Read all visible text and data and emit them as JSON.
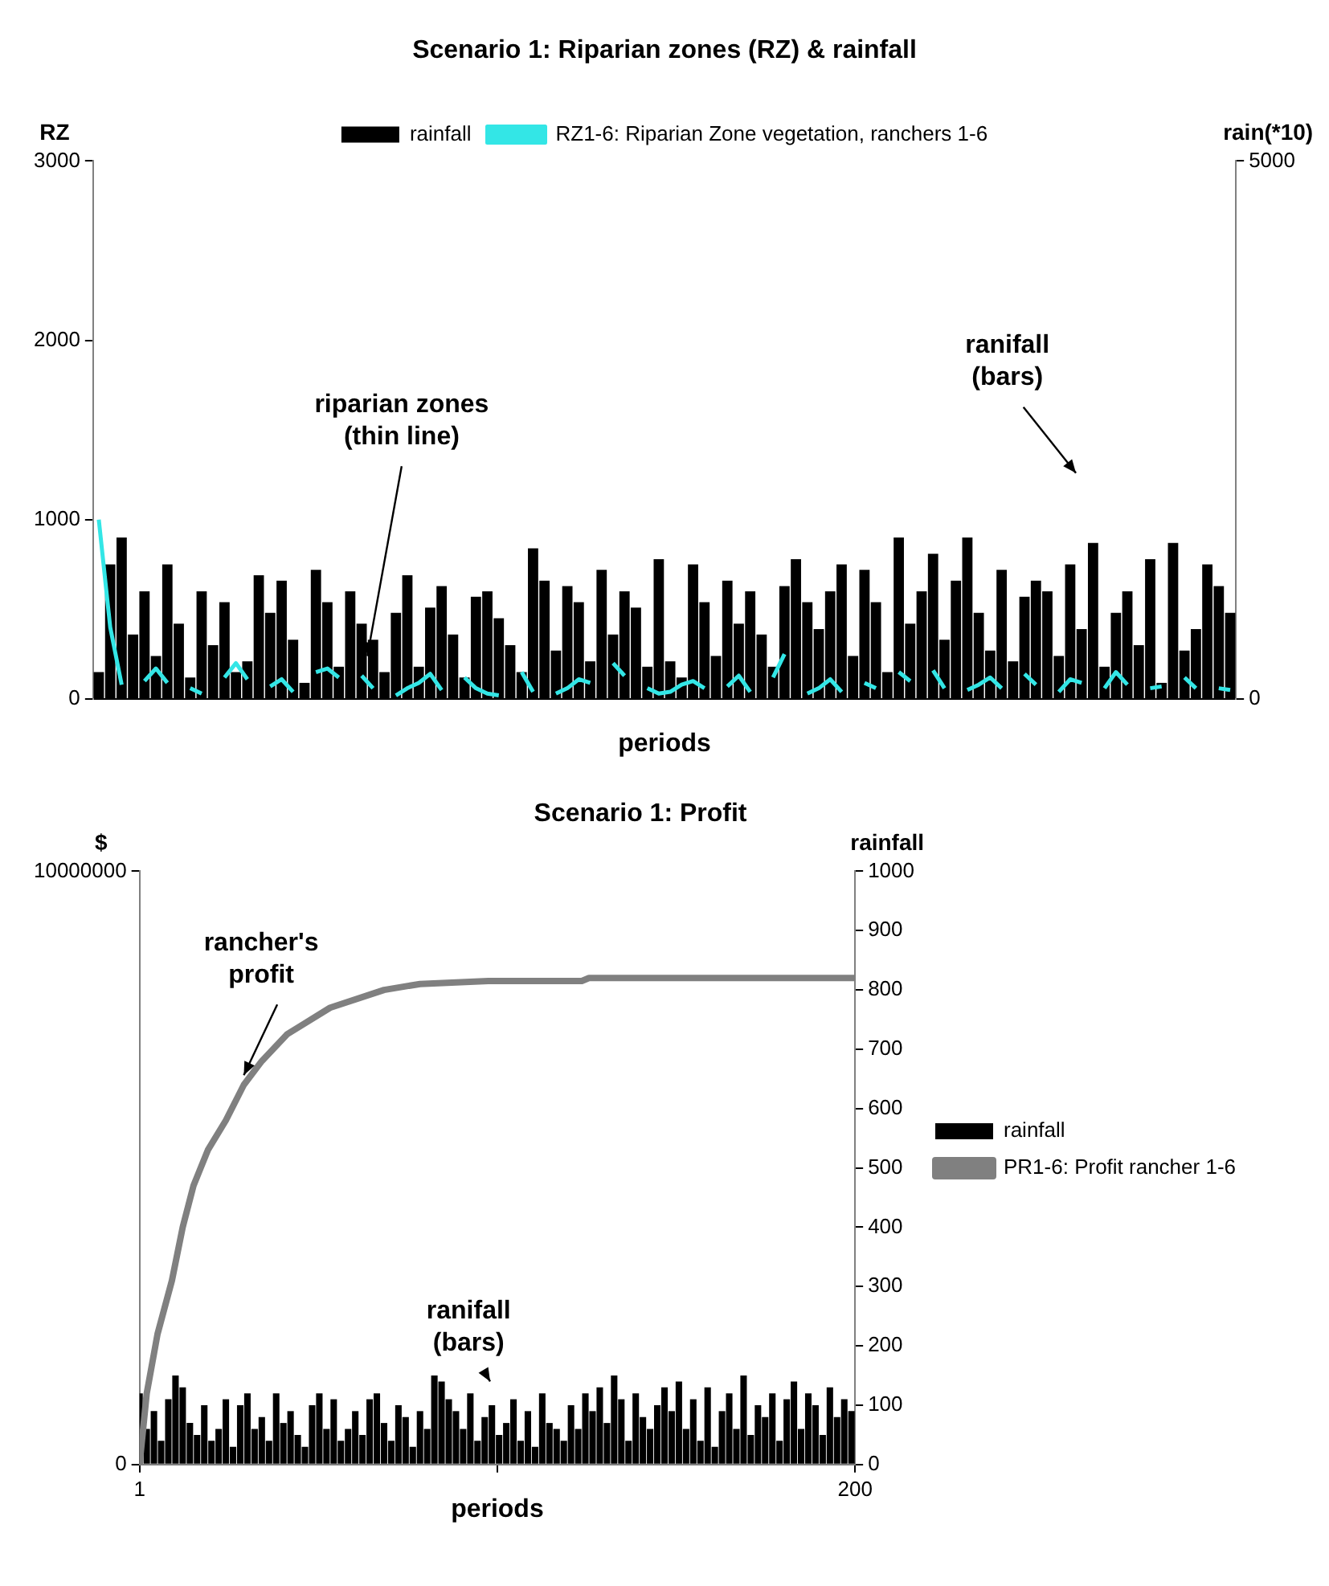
{
  "chart_data": [
    {
      "type": "bar",
      "title": "Scenario 1: Riparian zones (RZ) & rainfall",
      "xlabel": "periods",
      "ylabel": "RZ",
      "y2label": "rain(*10)",
      "categories": [
        null,
        null,
        null,
        null,
        null,
        null,
        null,
        null,
        null,
        null,
        null,
        null,
        null,
        null,
        null,
        null,
        null,
        null,
        null,
        null,
        null,
        null,
        null,
        null,
        null,
        null,
        null,
        null,
        null,
        null,
        null,
        null,
        null,
        null,
        null,
        null,
        null,
        null,
        null,
        null,
        null,
        null,
        null,
        null,
        null,
        null,
        null,
        null,
        null,
        null,
        null,
        null,
        null,
        null,
        null,
        null,
        null,
        null,
        null,
        null,
        null,
        null,
        null,
        null,
        null,
        null,
        null,
        null,
        null,
        null,
        null,
        null,
        null,
        null,
        null,
        null,
        null,
        null,
        null,
        null,
        null,
        null,
        null,
        null,
        null,
        null,
        null,
        null,
        null,
        null,
        null,
        null,
        null,
        null,
        null,
        null,
        null,
        null,
        null,
        null
      ],
      "series": [
        {
          "name": "rainfall",
          "axis": "y2",
          "color": "#000000",
          "values": [
            250,
            1250,
            1500,
            600,
            1000,
            400,
            1250,
            700,
            200,
            1000,
            500,
            900,
            250,
            350,
            1150,
            800,
            1100,
            550,
            150,
            1200,
            900,
            300,
            1000,
            700,
            550,
            250,
            800,
            1150,
            300,
            850,
            1050,
            600,
            200,
            950,
            1000,
            750,
            500,
            250,
            1400,
            1100,
            450,
            1050,
            900,
            350,
            1200,
            600,
            1000,
            850,
            300,
            1300,
            350,
            200,
            1250,
            900,
            400,
            1100,
            700,
            1000,
            600,
            300,
            1050,
            1300,
            900,
            650,
            1000,
            1250,
            400,
            1200,
            900,
            250,
            1500,
            700,
            1000,
            1350,
            550,
            1100,
            1500,
            800,
            450,
            1200,
            350,
            950,
            1100,
            1000,
            400,
            1250,
            650,
            1450,
            300,
            800,
            1000,
            500,
            1300,
            150,
            1450,
            450,
            650,
            1250,
            1050,
            800
          ]
        },
        {
          "name": "RZ1-6: Riparian Zone vegetation, ranchers 1-6",
          "type": "line",
          "axis": "y",
          "color": "#33e6e6",
          "values": [
            1000,
            400,
            80,
            null,
            100,
            170,
            90,
            null,
            60,
            30,
            null,
            120,
            200,
            110,
            null,
            70,
            110,
            40,
            null,
            150,
            170,
            120,
            null,
            130,
            60,
            null,
            20,
            60,
            90,
            140,
            50,
            null,
            120,
            60,
            30,
            20,
            null,
            150,
            40,
            null,
            30,
            60,
            110,
            90,
            null,
            200,
            130,
            null,
            60,
            30,
            40,
            80,
            100,
            60,
            null,
            70,
            130,
            40,
            null,
            120,
            250,
            null,
            30,
            60,
            110,
            40,
            null,
            90,
            60,
            null,
            150,
            100,
            null,
            160,
            60,
            null,
            50,
            80,
            120,
            60,
            null,
            140,
            80,
            null,
            40,
            110,
            90,
            null,
            60,
            150,
            80,
            null,
            60,
            70,
            null,
            120,
            60,
            null,
            60,
            50
          ]
        }
      ],
      "ylim": [
        0,
        3000
      ],
      "yticks": [
        0,
        1000,
        2000,
        3000
      ],
      "y2lim": [
        0,
        5000
      ],
      "y2ticks": [
        0,
        5000
      ],
      "legend": "top",
      "marker": "none",
      "annotations": [
        "riparian zones\n(thin line)",
        "ranifall\n(bars)"
      ]
    },
    {
      "type": "bar",
      "title": "Scenario 1: Profit",
      "xlabel": "periods",
      "ylabel": "$",
      "y2label": "rainfall",
      "x": [
        1,
        3,
        5,
        7,
        9,
        11,
        13,
        15,
        17,
        19,
        21,
        23,
        25,
        27,
        29,
        31,
        33,
        35,
        37,
        39,
        41,
        43,
        45,
        47,
        49,
        51,
        53,
        55,
        57,
        59,
        61,
        63,
        65,
        67,
        69,
        71,
        73,
        75,
        77,
        79,
        81,
        83,
        85,
        87,
        89,
        91,
        93,
        95,
        97,
        99,
        101,
        103,
        105,
        107,
        109,
        111,
        113,
        115,
        117,
        119,
        121,
        123,
        125,
        127,
        129,
        131,
        133,
        135,
        137,
        139,
        141,
        143,
        145,
        147,
        149,
        151,
        153,
        155,
        157,
        159,
        161,
        163,
        165,
        167,
        169,
        171,
        173,
        175,
        177,
        179,
        181,
        183,
        185,
        187,
        189,
        191,
        193,
        195,
        197,
        199
      ],
      "series": [
        {
          "name": "rainfall",
          "axis": "y2",
          "color": "#000000",
          "values": [
            120,
            60,
            90,
            40,
            110,
            150,
            130,
            70,
            50,
            100,
            40,
            60,
            110,
            30,
            100,
            120,
            60,
            80,
            40,
            120,
            70,
            90,
            50,
            30,
            100,
            120,
            60,
            110,
            40,
            60,
            90,
            50,
            110,
            120,
            70,
            40,
            100,
            80,
            30,
            90,
            60,
            150,
            140,
            110,
            90,
            60,
            120,
            40,
            80,
            100,
            50,
            70,
            110,
            40,
            90,
            30,
            120,
            70,
            60,
            40,
            100,
            60,
            120,
            90,
            130,
            70,
            150,
            110,
            40,
            120,
            80,
            60,
            100,
            130,
            90,
            140,
            60,
            110,
            40,
            130,
            30,
            90,
            120,
            60,
            150,
            50,
            100,
            80,
            120,
            40,
            110,
            140,
            60,
            120,
            100,
            50,
            130,
            80,
            110,
            90
          ]
        },
        {
          "name": "PR1-6: Profit rancher 1-6",
          "type": "line",
          "axis": "y",
          "color": "#808080",
          "x": [
            1,
            3,
            6,
            10,
            13,
            16,
            20,
            25,
            30,
            35,
            42,
            54,
            69,
            79,
            98,
            124,
            126,
            200
          ],
          "values": [
            0,
            1200000,
            2200000,
            3100000,
            4000000,
            4700000,
            5300000,
            5800000,
            6400000,
            6800000,
            7250000,
            7700000,
            8000000,
            8100000,
            8150000,
            8150000,
            8200000,
            8200000
          ]
        }
      ],
      "xlim": [
        1,
        200
      ],
      "xticks": [
        1,
        {
          "value": 100.5,
          "label": null
        },
        200
      ],
      "ylim": [
        0,
        10000000
      ],
      "yticks": [
        0,
        10000000
      ],
      "y2lim": [
        0,
        1000
      ],
      "y2ticks": [
        0,
        100,
        200,
        300,
        400,
        500,
        600,
        700,
        800,
        900,
        1000
      ],
      "legend": "right",
      "marker": "none",
      "annotations": [
        {
          "text": "rancher's\nprofit",
          "x": 30,
          "y": 6400000
        },
        "ranifall\n(bars)"
      ]
    }
  ]
}
